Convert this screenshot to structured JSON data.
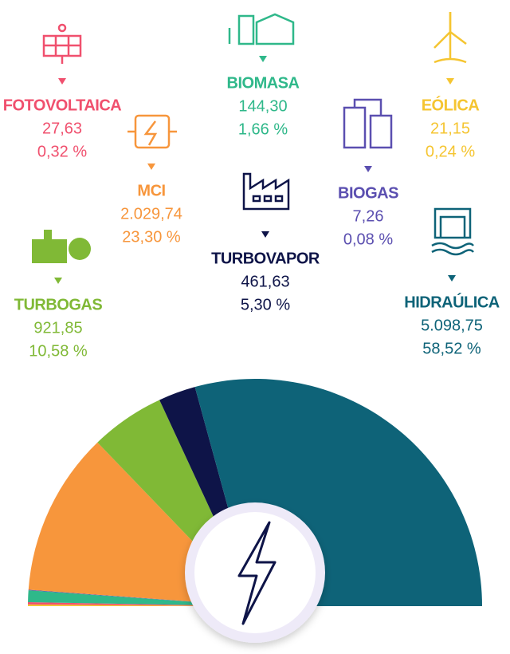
{
  "chart_data": {
    "type": "semi-pie",
    "categories": [
      "EÓLICA",
      "FOTOVOLTAICA",
      "BIOMASA",
      "BIOGAS",
      "MCI",
      "TURBOGAS",
      "TURBOVAPOR",
      "HIDRAÚLICA"
    ],
    "values": [
      21.15,
      27.63,
      144.3,
      7.26,
      2029.74,
      921.85,
      461.63,
      5098.75
    ],
    "value_labels": [
      "21,15",
      "27,63",
      "144,30",
      "7,26",
      "2.029,74",
      "921,85",
      "461,63",
      "5.098,75"
    ],
    "shares": [
      0.24,
      0.32,
      1.66,
      0.08,
      23.3,
      10.58,
      5.3,
      58.52
    ],
    "share_labels": [
      "0,24 %",
      "0,32 %",
      "1,66 %",
      "0,08 %",
      "23,30 %",
      "10,58 %",
      "5,30 %",
      "58,52 %"
    ],
    "colors": [
      "#f5c531",
      "#f0506e",
      "#2fb88a",
      "#5b4fb0",
      "#f7963c",
      "#80b936",
      "#0e1448",
      "#0e6378"
    ]
  }
}
